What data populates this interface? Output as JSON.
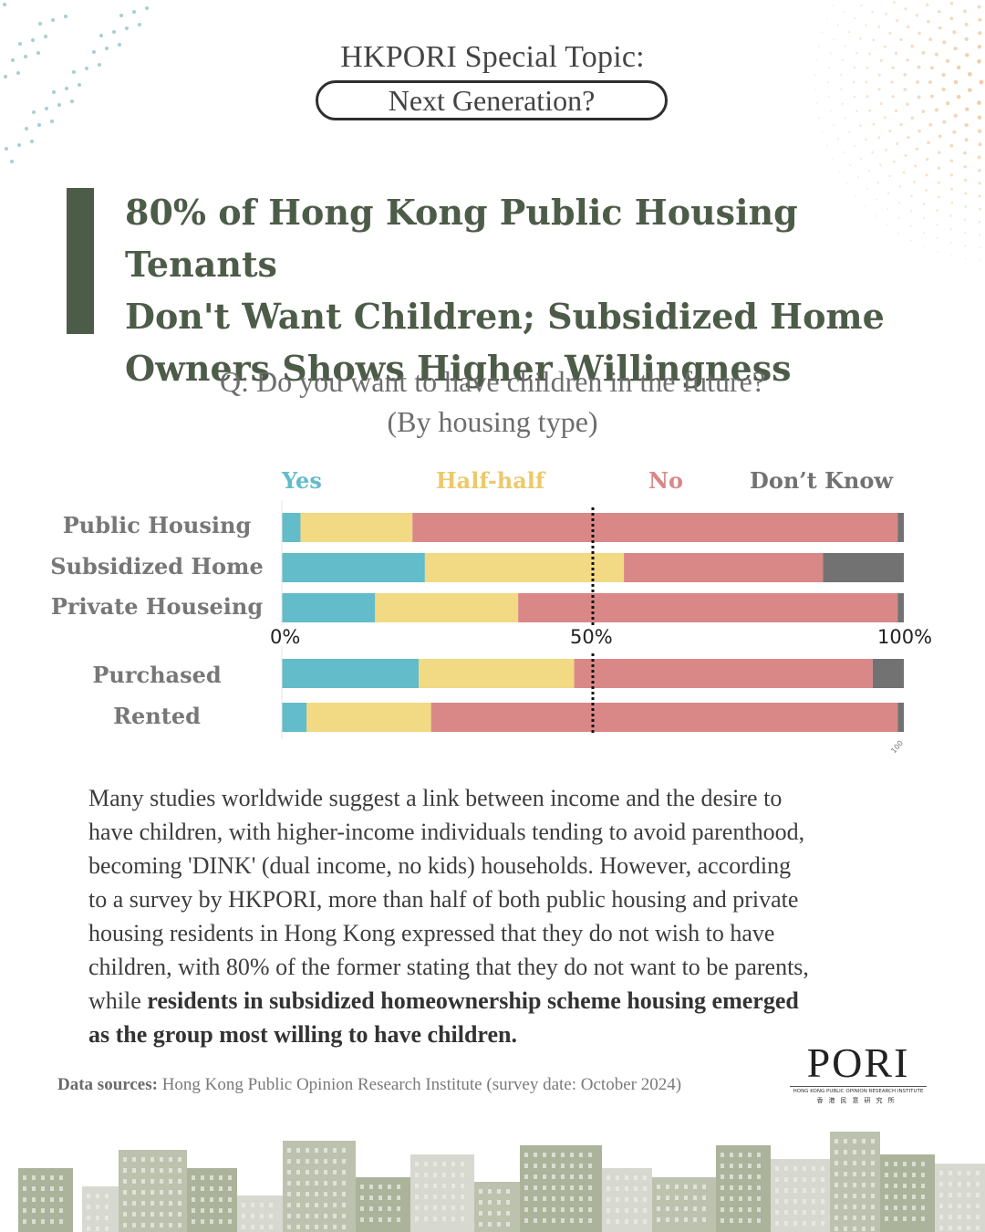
{
  "header": {
    "topic_line": "HKPORI Special Topic:",
    "topic_pill": "Next Generation?"
  },
  "headline": {
    "line1": "80% of Hong Kong Public Housing Tenants",
    "line2": "Don't Want Children; Subsidized Home",
    "line3": "Owners Shows Higher Willingness"
  },
  "question": {
    "line1": "Q: Do you want to have children in the future?",
    "line2": "(By housing type)"
  },
  "colors": {
    "yes": "#62bcc9",
    "half": "#f2d983",
    "no": "#d98887",
    "dont_know": "#727272",
    "title_green": "#4d5c48"
  },
  "chart_data": {
    "type": "bar",
    "orientation": "horizontal-stacked-100",
    "series_names": [
      "Yes",
      "Half-half",
      "No",
      "Don’t Know"
    ],
    "groups": [
      {
        "categories": [
          "Public Housing",
          "Subsidized Home",
          "Private Houseing"
        ],
        "values": [
          [
            3,
            18,
            78,
            1
          ],
          [
            23,
            32,
            32,
            13
          ],
          [
            15,
            23,
            61,
            1
          ]
        ]
      },
      {
        "categories": [
          "Purchased",
          "Rented"
        ],
        "values": [
          [
            22,
            25,
            48,
            5
          ],
          [
            4,
            20,
            75,
            1
          ]
        ]
      }
    ],
    "xlim": [
      0,
      100
    ],
    "x_tick_labels": [
      "0%",
      "50%",
      "100%"
    ],
    "small_tick_label": "100",
    "reference_line": 50,
    "legend_position": "top"
  },
  "body": {
    "p1": "Many studies worldwide suggest a link between income and the desire to",
    "p2": "have children, with higher-income individuals tending to avoid parenthood,",
    "p3": "becoming 'DINK' (dual income, no kids) households. However, according",
    "p4": "to a survey by HKPORI, more than half of both public housing and private",
    "p5": "housing residents in Hong Kong expressed that they do not wish to have",
    "p6": "children, with 80% of the former stating that they do not want to be parents,",
    "p7_plain": "while ",
    "p7_bold": "residents in subsidized homeownership scheme housing emerged",
    "p8_bold": "as the group most willing to have children."
  },
  "source": {
    "label": "Data sources:",
    "text": " Hong Kong Public Opinion Research Institute (survey date: October 2024)"
  },
  "logo": {
    "main": "PORI",
    "sub": "HONG KONG PUBLIC OPINION RESEARCH INSTITUTE",
    "cn": "香港民意研究所"
  }
}
